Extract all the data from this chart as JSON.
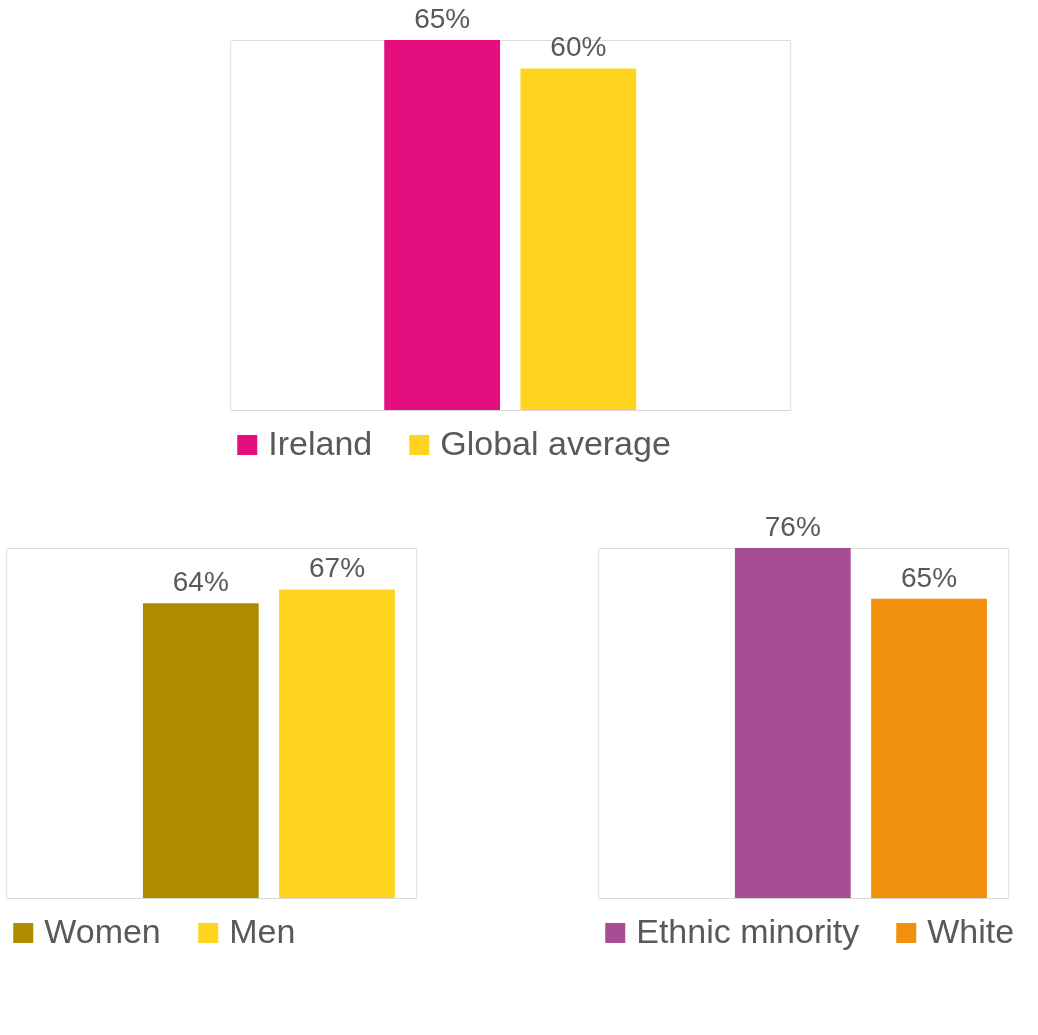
{
  "chart_data": [
    {
      "type": "bar",
      "categories": [
        null
      ],
      "legend": "bottom",
      "tick_labels": false,
      "series": [
        {
          "name": "Ireland",
          "color": "#e50e7e",
          "values": [
            65
          ],
          "value_labels": [
            "65%"
          ]
        },
        {
          "name": "Global average",
          "color": "#fed41e",
          "values": [
            60
          ],
          "value_labels": [
            "60%"
          ]
        }
      ]
    },
    {
      "type": "bar",
      "categories": [
        null
      ],
      "legend": "bottom",
      "tick_labels": false,
      "series": [
        {
          "name": "Women",
          "color": "#ae8c00",
          "values": [
            64
          ],
          "value_labels": [
            "64%"
          ]
        },
        {
          "name": "Men",
          "color": "#fed41e",
          "values": [
            67
          ],
          "value_labels": [
            "67%"
          ]
        }
      ]
    },
    {
      "type": "bar",
      "categories": [
        null
      ],
      "legend": "bottom",
      "tick_labels": false,
      "series": [
        {
          "name": "Ethnic minority",
          "color": "#a64d95",
          "values": [
            76
          ],
          "value_labels": [
            "76%"
          ]
        },
        {
          "name": "White",
          "color": "#f0900c",
          "values": [
            65
          ],
          "value_labels": [
            "65%"
          ]
        }
      ]
    }
  ]
}
